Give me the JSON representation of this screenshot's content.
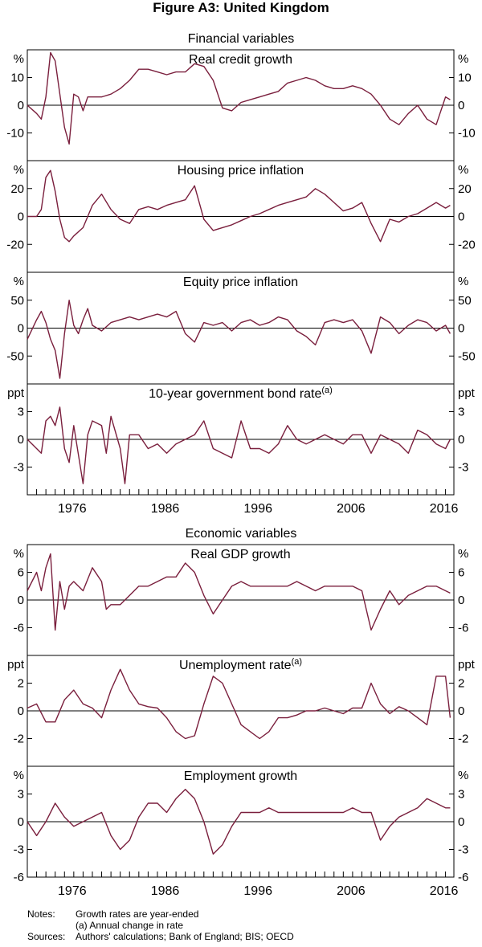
{
  "figure_title": "Figure A3: United Kingdom",
  "sections": [
    {
      "title": "Financial variables"
    },
    {
      "title": "Economic variables"
    }
  ],
  "notes": {
    "notes_label": "Notes:",
    "note_line1": "Growth rates are year-ended",
    "note_line2": "(a) Annual change in rate",
    "sources_label": "Sources:",
    "sources_text": "Authors' calculations; Bank of England; BIS; OECD"
  },
  "colors": {
    "series": "#7a1f3d",
    "axis": "#000000"
  },
  "chart_data": [
    {
      "type": "line",
      "title": "Real credit growth",
      "footnote": "",
      "ylabel_left": "%",
      "ylabel_right": "%",
      "ylim": [
        -20,
        20
      ],
      "yticks": [
        10,
        0,
        -10
      ],
      "ytick_labels": [
        "10",
        "0",
        "-10"
      ],
      "x_range": [
        1971,
        2016.9
      ],
      "x": [
        1971,
        1972,
        1972.5,
        1973,
        1973.5,
        1974,
        1974.5,
        1975,
        1975.5,
        1976,
        1976.5,
        1977,
        1977.5,
        1978,
        1979,
        1980,
        1981,
        1982,
        1983,
        1984,
        1985,
        1986,
        1987,
        1988,
        1989,
        1990,
        1991,
        1992,
        1993,
        1994,
        1995,
        1996,
        1997,
        1998,
        1999,
        2000,
        2001,
        2002,
        2003,
        2004,
        2005,
        2006,
        2007,
        2008,
        2009,
        2010,
        2011,
        2012,
        2013,
        2014,
        2015,
        2016,
        2016.5
      ],
      "values": [
        0,
        -3,
        -5,
        3,
        19,
        16,
        4,
        -8,
        -14,
        4,
        3,
        -2,
        3,
        3,
        3,
        4,
        6,
        9,
        13,
        13,
        12,
        11,
        12,
        12,
        15,
        14,
        9,
        -1,
        -2,
        1,
        2,
        3,
        4,
        5,
        8,
        9,
        10,
        9,
        7,
        6,
        6,
        7,
        6,
        4,
        0,
        -5,
        -7,
        -3,
        0,
        -5,
        -7,
        3,
        2
      ]
    },
    {
      "type": "line",
      "title": "Housing price inflation",
      "footnote": "",
      "ylabel_left": "%",
      "ylabel_right": "%",
      "ylim": [
        -40,
        40
      ],
      "yticks": [
        20,
        0,
        -20
      ],
      "ytick_labels": [
        "20",
        "0",
        "-20"
      ],
      "x_range": [
        1971,
        2016.9
      ],
      "x": [
        1971,
        1972,
        1972.5,
        1973,
        1973.5,
        1974,
        1974.5,
        1975,
        1975.5,
        1976,
        1977,
        1978,
        1979,
        1980,
        1981,
        1982,
        1983,
        1984,
        1985,
        1986,
        1987,
        1988,
        1989,
        1990,
        1991,
        1992,
        1993,
        1994,
        1995,
        1996,
        1997,
        1998,
        1999,
        2000,
        2001,
        2002,
        2003,
        2004,
        2005,
        2006,
        2007,
        2008,
        2009,
        2010,
        2011,
        2012,
        2013,
        2014,
        2015,
        2016,
        2016.5
      ],
      "values": [
        0,
        0,
        5,
        28,
        33,
        18,
        -2,
        -15,
        -18,
        -14,
        -8,
        8,
        16,
        5,
        -2,
        -5,
        5,
        7,
        5,
        8,
        10,
        12,
        22,
        -2,
        -10,
        -8,
        -6,
        -3,
        0,
        2,
        5,
        8,
        10,
        12,
        14,
        20,
        16,
        10,
        4,
        6,
        10,
        -5,
        -18,
        -2,
        -4,
        0,
        2,
        6,
        10,
        6,
        8
      ]
    },
    {
      "type": "line",
      "title": "Equity price inflation",
      "footnote": "",
      "ylabel_left": "%",
      "ylabel_right": "%",
      "ylim": [
        -100,
        100
      ],
      "yticks": [
        50,
        0,
        -50
      ],
      "ytick_labels": [
        "50",
        "0",
        "-50"
      ],
      "x_range": [
        1971,
        2016.9
      ],
      "x": [
        1971,
        1972,
        1972.5,
        1973,
        1973.5,
        1974,
        1974.5,
        1975,
        1975.5,
        1976,
        1976.5,
        1977,
        1977.5,
        1978,
        1979,
        1980,
        1981,
        1982,
        1983,
        1984,
        1985,
        1986,
        1987,
        1988,
        1989,
        1990,
        1991,
        1992,
        1993,
        1994,
        1995,
        1996,
        1997,
        1998,
        1999,
        2000,
        2001,
        2002,
        2003,
        2004,
        2005,
        2006,
        2007,
        2008,
        2009,
        2010,
        2011,
        2012,
        2013,
        2014,
        2015,
        2016,
        2016.5
      ],
      "values": [
        -20,
        15,
        30,
        10,
        -20,
        -40,
        -90,
        -10,
        50,
        5,
        -10,
        15,
        35,
        5,
        -5,
        10,
        15,
        20,
        15,
        20,
        25,
        20,
        30,
        -10,
        -25,
        10,
        5,
        10,
        -5,
        10,
        15,
        5,
        10,
        20,
        15,
        -5,
        -15,
        -30,
        10,
        15,
        10,
        15,
        -5,
        -45,
        20,
        10,
        -10,
        5,
        15,
        10,
        -5,
        5,
        -10
      ]
    },
    {
      "type": "line",
      "title": "10-year government bond rate",
      "footnote": "(a)",
      "ylabel_left": "ppt",
      "ylabel_right": "ppt",
      "ylim": [
        -6,
        6
      ],
      "yticks": [
        3,
        0,
        -3
      ],
      "ytick_labels": [
        "3",
        "0",
        "-3"
      ],
      "x_range": [
        1971,
        2016.9
      ],
      "x": [
        1971,
        1972,
        1972.5,
        1973,
        1973.5,
        1974,
        1974.5,
        1975,
        1975.5,
        1976,
        1977,
        1977.5,
        1978,
        1979,
        1979.5,
        1980,
        1981,
        1981.5,
        1982,
        1983,
        1984,
        1985,
        1986,
        1987,
        1988,
        1989,
        1990,
        1991,
        1992,
        1993,
        1994,
        1995,
        1996,
        1997,
        1998,
        1999,
        2000,
        2001,
        2002,
        2003,
        2004,
        2005,
        2006,
        2007,
        2008,
        2009,
        2010,
        2011,
        2012,
        2013,
        2014,
        2015,
        2016,
        2016.5
      ],
      "values": [
        0,
        -1,
        -1.5,
        2,
        2.5,
        1.5,
        3.5,
        -1,
        -2.5,
        1.5,
        -4.8,
        0.5,
        2,
        1.5,
        -1.5,
        2.5,
        -1,
        -4.8,
        0.5,
        0.5,
        -1,
        -0.5,
        -1.5,
        -0.5,
        0,
        0.5,
        2,
        -1,
        -1.5,
        -2,
        2,
        -1,
        -1,
        -1.5,
        -0.5,
        1.5,
        0,
        -0.5,
        0,
        0.5,
        0,
        -0.5,
        0.5,
        0.5,
        -1.5,
        0.5,
        0,
        -0.5,
        -1.5,
        1,
        0.5,
        -0.5,
        -1,
        0
      ]
    },
    {
      "type": "line",
      "title": "Real GDP growth",
      "footnote": "",
      "ylabel_left": "%",
      "ylabel_right": "%",
      "ylim": [
        -12,
        12
      ],
      "yticks": [
        6,
        0,
        -6
      ],
      "ytick_labels": [
        "6",
        "0",
        "-6"
      ],
      "x_range": [
        1971,
        2016.9
      ],
      "x": [
        1971,
        1972,
        1972.5,
        1973,
        1973.5,
        1974,
        1974.5,
        1975,
        1975.5,
        1976,
        1977,
        1978,
        1979,
        1979.5,
        1980,
        1981,
        1982,
        1983,
        1984,
        1985,
        1986,
        1987,
        1988,
        1989,
        1990,
        1991,
        1992,
        1993,
        1994,
        1995,
        1996,
        1997,
        1998,
        1999,
        2000,
        2001,
        2002,
        2003,
        2004,
        2005,
        2006,
        2007,
        2008,
        2009,
        2010,
        2011,
        2012,
        2013,
        2014,
        2015,
        2016,
        2016.5
      ],
      "values": [
        2,
        6,
        2,
        7,
        10,
        -6.5,
        4,
        -2,
        3,
        4,
        2,
        7,
        4,
        -2,
        -1,
        -1,
        1,
        3,
        3,
        4,
        5,
        5,
        8,
        6,
        1,
        -3,
        0,
        3,
        4,
        3,
        3,
        3,
        3,
        3,
        4,
        3,
        2,
        3,
        3,
        3,
        3,
        2,
        -6.5,
        -2,
        2,
        -1,
        1,
        2,
        3,
        3,
        2,
        1.5
      ]
    },
    {
      "type": "line",
      "title": "Unemployment rate",
      "footnote": "(a)",
      "ylabel_left": "ppt",
      "ylabel_right": "ppt",
      "ylim": [
        -4,
        4
      ],
      "yticks": [
        2,
        0,
        -2
      ],
      "ytick_labels": [
        "2",
        "0",
        "-2"
      ],
      "x_range": [
        1971,
        2016.9
      ],
      "x": [
        1971,
        1972,
        1973,
        1974,
        1975,
        1976,
        1977,
        1978,
        1979,
        1980,
        1981,
        1982,
        1983,
        1984,
        1985,
        1986,
        1987,
        1988,
        1989,
        1990,
        1991,
        1992,
        1993,
        1994,
        1995,
        1996,
        1997,
        1998,
        1999,
        2000,
        2001,
        2002,
        2003,
        2004,
        2005,
        2006,
        2007,
        2008,
        2009,
        2010,
        2011,
        2012,
        2013,
        2014,
        2015,
        2016,
        2016.5
      ],
      "values": [
        0.2,
        0.5,
        -0.8,
        -0.8,
        0.8,
        1.5,
        0.5,
        0.2,
        -0.5,
        1.5,
        3,
        1.5,
        0.5,
        0.3,
        0.2,
        -0.5,
        -1.5,
        -2,
        -1.8,
        0.5,
        2.5,
        2,
        0.5,
        -1,
        -1.5,
        -2,
        -1.5,
        -0.5,
        -0.5,
        -0.3,
        0,
        0,
        0.2,
        0,
        -0.2,
        0.2,
        0.2,
        2,
        0.5,
        -0.2,
        0.3,
        0,
        -0.5,
        -1,
        2.5,
        2.5,
        -0.5
      ]
    },
    {
      "type": "line",
      "title": "Employment growth",
      "footnote": "",
      "ylabel_left": "%",
      "ylabel_right": "%",
      "ylim": [
        -6,
        6
      ],
      "yticks": [
        3,
        0,
        -3
      ],
      "ytick_labels": [
        "3",
        "0",
        "-3"
      ],
      "yticks_extra": [
        -6
      ],
      "yticks_extra_labels": [
        "-6"
      ],
      "x_range": [
        1971,
        2016.9
      ],
      "x": [
        1971,
        1972,
        1973,
        1974,
        1975,
        1976,
        1977,
        1978,
        1979,
        1980,
        1981,
        1982,
        1983,
        1984,
        1985,
        1986,
        1987,
        1988,
        1989,
        1990,
        1991,
        1992,
        1993,
        1994,
        1995,
        1996,
        1997,
        1998,
        1999,
        2000,
        2001,
        2002,
        2003,
        2004,
        2005,
        2006,
        2007,
        2008,
        2009,
        2010,
        2011,
        2012,
        2013,
        2014,
        2015,
        2016,
        2016.5
      ],
      "values": [
        0,
        -1.5,
        0,
        2,
        0.5,
        -0.5,
        0,
        0.5,
        1,
        -1.5,
        -3,
        -2,
        0.5,
        2,
        2,
        1,
        2.5,
        3.5,
        2.5,
        0,
        -3.5,
        -2.5,
        -0.5,
        1,
        1,
        1,
        1.5,
        1,
        1,
        1,
        1,
        1,
        1,
        1,
        1,
        1.5,
        1,
        1,
        -2,
        -0.5,
        0.5,
        1,
        1.5,
        2.5,
        2,
        1.5,
        1.5
      ]
    }
  ],
  "x_axis": {
    "tick_labels": [
      "1976",
      "1986",
      "1996",
      "2006",
      "2016"
    ],
    "tick_years": [
      1976,
      1986,
      1996,
      2006,
      2016
    ]
  }
}
